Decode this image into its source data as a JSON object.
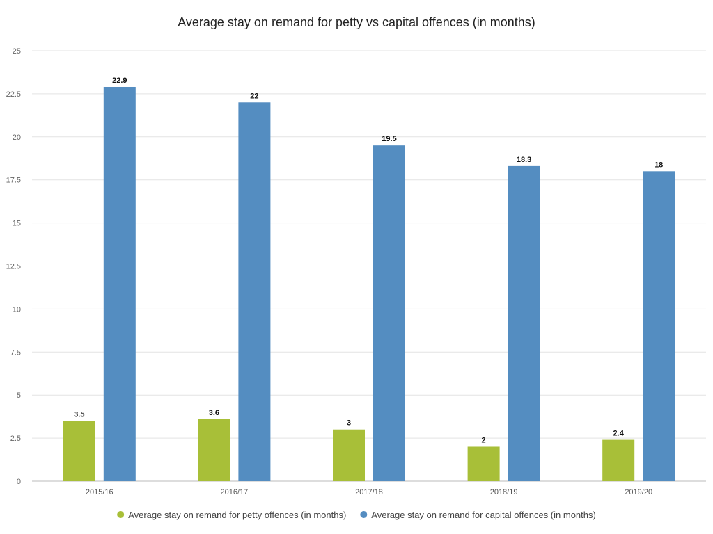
{
  "chart_data": {
    "type": "bar",
    "title": "Average stay on remand for petty vs capital offences (in months)",
    "xlabel": "",
    "ylabel": "",
    "categories": [
      "2015/16",
      "2016/17",
      "2017/18",
      "2018/19",
      "2019/20"
    ],
    "series": [
      {
        "name": "Average stay on remand for petty offences (in months)",
        "color": "#a8bf38",
        "values": [
          3.5,
          3.6,
          3,
          2,
          2.4
        ]
      },
      {
        "name": "Average stay on remand for capital offences (in months)",
        "color": "#548dc1",
        "values": [
          22.9,
          22,
          19.5,
          18.3,
          18
        ]
      }
    ],
    "ylim": [
      0,
      25
    ],
    "yticks": [
      0,
      2.5,
      5,
      7.5,
      10,
      12.5,
      15,
      17.5,
      20,
      22.5,
      25
    ],
    "grid": true,
    "legend_position": "bottom"
  }
}
